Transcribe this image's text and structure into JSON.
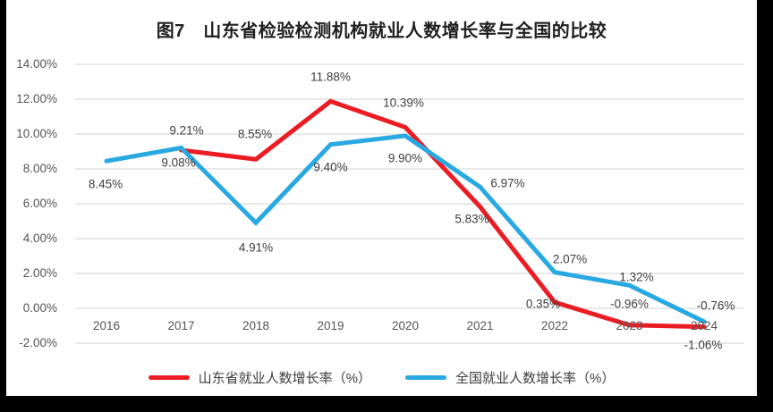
{
  "figure": {
    "title": "图7　山东省检验检测机构就业人数增长率与全国的比较"
  },
  "chart_data": {
    "type": "line",
    "title": "图7　山东省检验检测机构就业人数增长率与全国的比较",
    "categories": [
      "2016",
      "2017",
      "2018",
      "2019",
      "2020",
      "2021",
      "2022",
      "2023",
      "2024"
    ],
    "series": [
      {
        "name": "山东省就业人数增长率（%）",
        "color": "#ec1c24",
        "values": [
          null,
          9.08,
          8.55,
          11.88,
          10.39,
          5.83,
          0.35,
          -0.96,
          -1.06
        ],
        "point_labels": [
          "",
          "9.08%",
          "8.55%",
          "11.88%",
          "10.39%",
          "5.83%",
          "0.35%",
          "-0.96%",
          "-1.06%"
        ]
      },
      {
        "name": "全国就业人数增长率（%）",
        "color": "#29a9e1",
        "values": [
          8.45,
          9.21,
          4.91,
          9.4,
          9.9,
          6.97,
          2.07,
          1.32,
          -0.76
        ],
        "point_labels": [
          "8.45%",
          "9.21%",
          "4.91%",
          "9.40%",
          "9.90%",
          "6.97%",
          "2.07%",
          "1.32%",
          "-0.76%"
        ]
      }
    ],
    "xlabel": "",
    "ylabel": "",
    "ylim": [
      -2,
      14
    ],
    "ytick_step": 2,
    "yticks": [
      "14.00%",
      "12.00%",
      "10.00%",
      "8.00%",
      "6.00%",
      "4.00%",
      "2.00%",
      "0.00%",
      "-2.00%"
    ],
    "grid": true,
    "gridline_color": "#d9d9d9",
    "axis_text_color": "#555555",
    "label_text_color": "#3d3d3d",
    "legend_position": "bottom"
  }
}
